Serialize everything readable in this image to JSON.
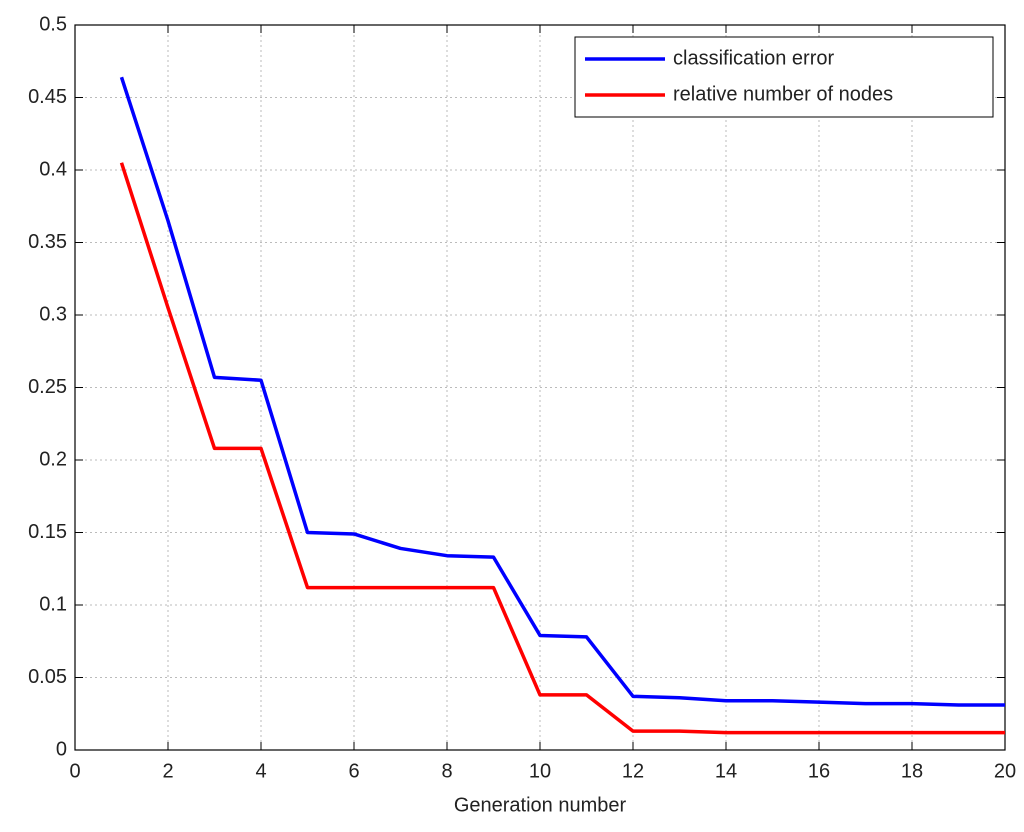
{
  "chart_data": {
    "type": "line",
    "x_label": "Generation number",
    "x": [
      1,
      2,
      3,
      4,
      5,
      6,
      7,
      8,
      9,
      10,
      11,
      12,
      13,
      14,
      15,
      16,
      17,
      18,
      19,
      20
    ],
    "series": [
      {
        "name": "classification error",
        "color": "#0000ff",
        "values": [
          0.464,
          0.365,
          0.257,
          0.255,
          0.15,
          0.149,
          0.139,
          0.134,
          0.133,
          0.079,
          0.078,
          0.037,
          0.036,
          0.034,
          0.034,
          0.033,
          0.032,
          0.032,
          0.031,
          0.031
        ]
      },
      {
        "name": "relative number of nodes",
        "color": "#ff0000",
        "values": [
          0.405,
          0.305,
          0.208,
          0.208,
          0.112,
          0.112,
          0.112,
          0.112,
          0.112,
          0.038,
          0.038,
          0.013,
          0.013,
          0.012,
          0.012,
          0.012,
          0.012,
          0.012,
          0.012,
          0.012
        ]
      }
    ],
    "xlim": [
      0,
      20
    ],
    "xticks": [
      0,
      2,
      4,
      6,
      8,
      10,
      12,
      14,
      16,
      18,
      20
    ],
    "ylim": [
      0,
      0.5
    ],
    "yticks": [
      0,
      0.05,
      0.1,
      0.15,
      0.2,
      0.25,
      0.3,
      0.35,
      0.4,
      0.45,
      0.5
    ],
    "grid": true,
    "legend": "upper right"
  }
}
